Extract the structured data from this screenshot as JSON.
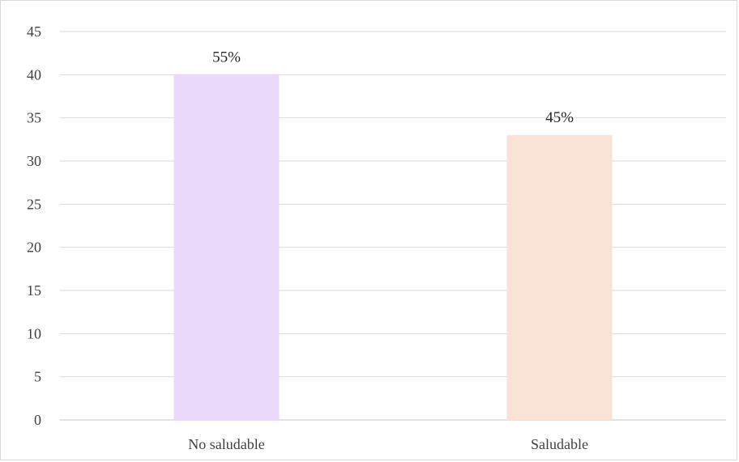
{
  "chart_data": {
    "type": "bar",
    "categories": [
      "No saludable",
      "Saludable"
    ],
    "values": [
      40,
      33
    ],
    "data_labels": [
      "55%",
      "45%"
    ],
    "bar_colors": [
      "#ead9fb",
      "#f9e3d6"
    ],
    "ylim": [
      0,
      45
    ],
    "yticks": [
      0,
      5,
      10,
      15,
      20,
      25,
      30,
      35,
      40,
      45
    ],
    "title": "",
    "xlabel": "",
    "ylabel": "",
    "grid": true,
    "legend": "none"
  }
}
